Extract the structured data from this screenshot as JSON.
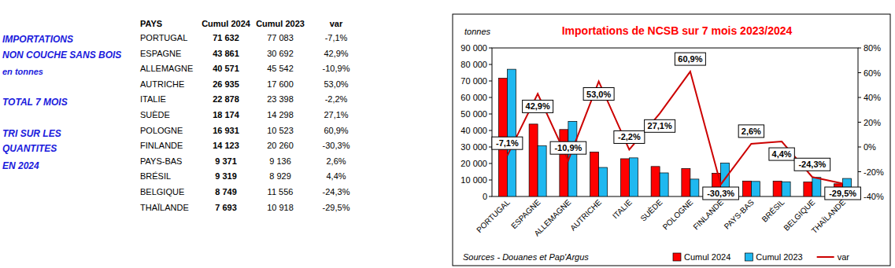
{
  "side_text": [
    "IMPORTATIONS",
    "NON COUCHE SANS BOIS",
    "en tonnes",
    "TOTAL 7 MOIS",
    "TRI SUR LES",
    "QUANTITES",
    "EN 2024"
  ],
  "table": {
    "header": [
      "PAYS",
      "Cumul 2024",
      "Cumul 2023",
      "var"
    ],
    "rows": [
      [
        "PORTUGAL",
        "71 632",
        "77 083",
        "-7,1%"
      ],
      [
        "ESPAGNE",
        "43 861",
        "30 692",
        "42,9%"
      ],
      [
        "ALLEMAGNE",
        "40 571",
        "45 542",
        "-10,9%"
      ],
      [
        "AUTRICHE",
        "26 935",
        "17 600",
        "53,0%"
      ],
      [
        "ITALIE",
        "22 878",
        "23 398",
        "-2,2%"
      ],
      [
        "SUÈDE",
        "18 174",
        "14 298",
        "27,1%"
      ],
      [
        "POLOGNE",
        "16 931",
        "10 523",
        "60,9%"
      ],
      [
        "FINLANDE",
        "14 123",
        "20 260",
        "-30,3%"
      ],
      [
        "PAYS-BAS",
        "9 371",
        "9 136",
        "2,6%"
      ],
      [
        "BRÉSIL",
        "9 319",
        "8 929",
        "4,4%"
      ],
      [
        "BELGIQUE",
        "8 749",
        "11 556",
        "-24,3%"
      ],
      [
        "THAÏLANDE",
        "7 693",
        "10 918",
        "-29,5%"
      ]
    ]
  },
  "chart_data": {
    "type": "bar",
    "title": "Importations de NCSB sur 7 mois 2023/2024",
    "y_label": "tonnes",
    "source": "Sources - Douanes et Pap'Argus",
    "categories": [
      "PORTUGAL",
      "ESPAGNE",
      "ALLEMAGNE",
      "AUTRICHE",
      "ITALIE",
      "SUÈDE",
      "POLOGNE",
      "FINLANDE",
      "PAYS-BAS",
      "BRÉSIL",
      "BELGIQUE",
      "THAÏLANDE"
    ],
    "series": [
      {
        "name": "Cumul 2024",
        "color": "#ff0000",
        "values": [
          71632,
          43861,
          40571,
          26935,
          22878,
          18174,
          16931,
          14123,
          9371,
          9319,
          8749,
          7693
        ]
      },
      {
        "name": "Cumul 2023",
        "color": "#1fb8f0",
        "values": [
          77083,
          30692,
          45542,
          17600,
          23398,
          14298,
          10523,
          20260,
          9136,
          8929,
          11556,
          10918
        ]
      },
      {
        "name": "var",
        "type": "line",
        "axis": "y2",
        "color": "#cc0000",
        "data_labels": true,
        "values": [
          -7.1,
          42.9,
          -10.9,
          53.0,
          -2.2,
          27.1,
          60.9,
          -30.3,
          2.6,
          4.4,
          -24.3,
          -29.5
        ],
        "value_labels": [
          "-7,1%",
          "42,9%",
          "-10,9%",
          "53,0%",
          "-2,2%",
          "27,1%",
          "60,9%",
          "-30,3%",
          "2,6%",
          "4,4%",
          "-24,3%",
          "-29,5%"
        ]
      }
    ],
    "ylim": [
      0,
      90000
    ],
    "yticks": [
      0,
      {
        "value": 10000,
        "label": "10 000"
      },
      {
        "value": 20000,
        "label": "20 000"
      },
      {
        "value": 30000,
        "label": "30 000"
      },
      {
        "value": 40000,
        "label": "40 000"
      },
      {
        "value": 50000,
        "label": "50 000"
      },
      {
        "value": 60000,
        "label": "60 000"
      },
      {
        "value": 70000,
        "label": "70 000"
      },
      {
        "value": 80000,
        "label": "80 000"
      },
      {
        "value": 90000,
        "label": "90 000"
      }
    ],
    "y2lim": [
      -40,
      80
    ],
    "y2ticks": [
      {
        "value": -40,
        "label": "-40%"
      },
      {
        "value": -20,
        "label": "-20%"
      },
      {
        "value": 0,
        "label": "0%"
      },
      {
        "value": 20,
        "label": "20%"
      },
      {
        "value": 40,
        "label": "40%"
      },
      {
        "value": 60,
        "label": "60%"
      },
      {
        "value": 80,
        "label": "80%"
      }
    ],
    "grid": false,
    "legend": "bottom-right"
  }
}
